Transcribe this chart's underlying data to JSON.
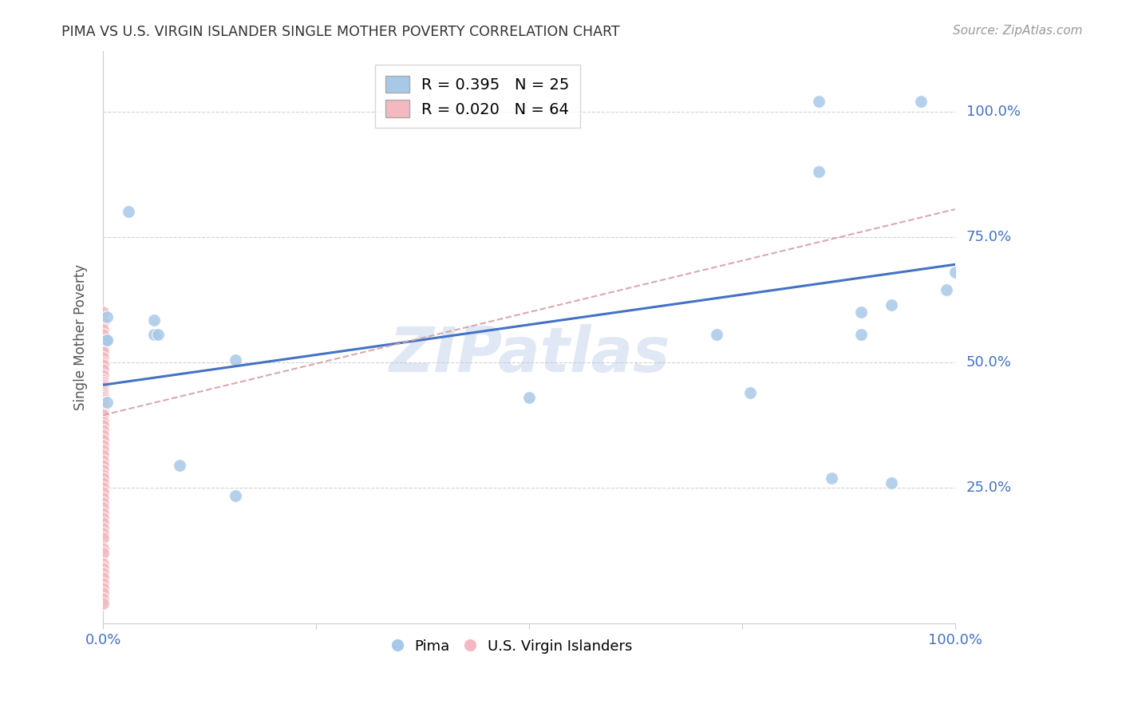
{
  "title": "PIMA VS U.S. VIRGIN ISLANDER SINGLE MOTHER POVERTY CORRELATION CHART",
  "source": "Source: ZipAtlas.com",
  "ylabel": "Single Mother Poverty",
  "watermark": "ZIPatlas",
  "pima_R": 0.395,
  "pima_N": 25,
  "vi_R": 0.02,
  "vi_N": 64,
  "pima_color": "#a8c8e8",
  "vi_color": "#f4b8c0",
  "trendline_pima_color": "#4472c4",
  "trendline_vi_color": "#d4a0a8",
  "ytick_labels": [
    "100.0%",
    "75.0%",
    "50.0%",
    "25.0%"
  ],
  "ytick_values": [
    1.0,
    0.75,
    0.5,
    0.25
  ],
  "xlim": [
    0.0,
    1.0
  ],
  "ylim": [
    -0.02,
    1.12
  ],
  "pima_x": [
    0.005,
    0.005,
    0.005,
    0.005,
    0.005,
    0.03,
    0.06,
    0.06,
    0.065,
    0.09,
    0.155,
    0.155,
    0.5,
    0.72,
    0.76,
    0.84,
    0.84,
    0.855,
    0.89,
    0.89,
    0.925,
    0.925,
    0.96,
    0.99,
    1.0
  ],
  "pima_y": [
    0.59,
    0.545,
    0.545,
    0.545,
    0.42,
    0.8,
    0.585,
    0.555,
    0.555,
    0.295,
    0.505,
    0.235,
    0.43,
    0.555,
    0.44,
    1.02,
    0.88,
    0.27,
    0.555,
    0.6,
    0.26,
    0.615,
    1.02,
    0.645,
    0.68
  ],
  "vi_x": [
    0.0,
    0.0,
    0.0,
    0.0,
    0.0,
    0.0,
    0.0,
    0.0,
    0.0,
    0.0,
    0.0,
    0.0,
    0.0,
    0.0,
    0.0,
    0.0,
    0.0,
    0.0,
    0.0,
    0.0,
    0.0,
    0.0,
    0.0,
    0.0,
    0.0,
    0.0,
    0.0,
    0.0,
    0.0,
    0.0,
    0.0,
    0.0,
    0.0,
    0.0,
    0.0,
    0.0,
    0.0,
    0.0,
    0.0,
    0.0,
    0.0,
    0.0,
    0.0,
    0.0,
    0.0,
    0.0,
    0.0,
    0.0,
    0.0,
    0.0,
    0.0,
    0.0,
    0.0,
    0.0,
    0.0,
    0.0,
    0.0,
    0.0,
    0.0,
    0.0,
    0.0,
    0.0,
    0.0,
    0.0
  ],
  "vi_y": [
    0.6,
    0.58,
    0.565,
    0.555,
    0.54,
    0.53,
    0.52,
    0.51,
    0.5,
    0.495,
    0.485,
    0.475,
    0.465,
    0.46,
    0.455,
    0.45,
    0.445,
    0.44,
    0.435,
    0.43,
    0.425,
    0.42,
    0.415,
    0.41,
    0.405,
    0.4,
    0.395,
    0.385,
    0.38,
    0.375,
    0.365,
    0.355,
    0.345,
    0.335,
    0.325,
    0.315,
    0.305,
    0.295,
    0.285,
    0.275,
    0.27,
    0.26,
    0.25,
    0.24,
    0.23,
    0.22,
    0.21,
    0.2,
    0.19,
    0.18,
    0.17,
    0.16,
    0.15,
    0.13,
    0.12,
    0.1,
    0.09,
    0.08,
    0.07,
    0.06,
    0.05,
    0.04,
    0.03,
    0.02
  ],
  "pima_trend_x0": 0.0,
  "pima_trend_y0": 0.455,
  "pima_trend_x1": 1.0,
  "pima_trend_y1": 0.695,
  "vi_trend_x0": 0.0,
  "vi_trend_y0": 0.395,
  "vi_trend_x1": 1.0,
  "vi_trend_y1": 0.805
}
